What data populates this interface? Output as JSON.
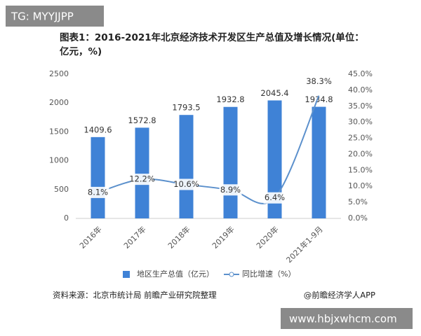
{
  "watermark_top": "TG: MYYJJPP",
  "watermark_bottom": "www.hbjxwhcm.com",
  "source": "资料来源：北京市统计局 前瞻产业研究院整理",
  "credit": "@前瞻经济学人APP",
  "chart_data": {
    "type": "bar",
    "title": "图表1：2016-2021年北京经济技术开发区生产总值及增长情况(单位：亿元，%)",
    "categories": [
      "2016年",
      "2017年",
      "2018年",
      "2019年",
      "2020年",
      "2021年1-9月"
    ],
    "series": [
      {
        "name": "地区生产总值（亿元）",
        "type": "bar",
        "color": "#3f82d6",
        "values": [
          1409.6,
          1572.8,
          1793.5,
          1932.8,
          2045.4,
          1934.8
        ]
      },
      {
        "name": "同比增速（%）",
        "type": "line",
        "axis": "y2",
        "color": "#5b90cc",
        "values": [
          8.1,
          12.2,
          10.6,
          8.9,
          6.4,
          38.3
        ],
        "value_labels": [
          "8.1%",
          "12.2%",
          "10.6%",
          "8.9%",
          "6.4%",
          "38.3%"
        ]
      }
    ],
    "ylim": [
      0,
      2500
    ],
    "yticks": [
      0,
      500,
      1000,
      1500,
      2000,
      2500
    ],
    "y2lim": [
      0,
      45
    ],
    "y2ticks": [
      {
        "value": 0,
        "label": "0.0%"
      },
      {
        "value": 5,
        "label": "5.0%"
      },
      {
        "value": 10,
        "label": "10.0%"
      },
      {
        "value": 15,
        "label": "15.0%"
      },
      {
        "value": 20,
        "label": "20.0%"
      },
      {
        "value": 25,
        "label": "25.0%"
      },
      {
        "value": 30,
        "label": "30.0%"
      },
      {
        "value": 35,
        "label": "35.0%"
      },
      {
        "value": 40,
        "label": "40.0%"
      },
      {
        "value": 45,
        "label": "45.0%"
      }
    ],
    "grid": false
  }
}
